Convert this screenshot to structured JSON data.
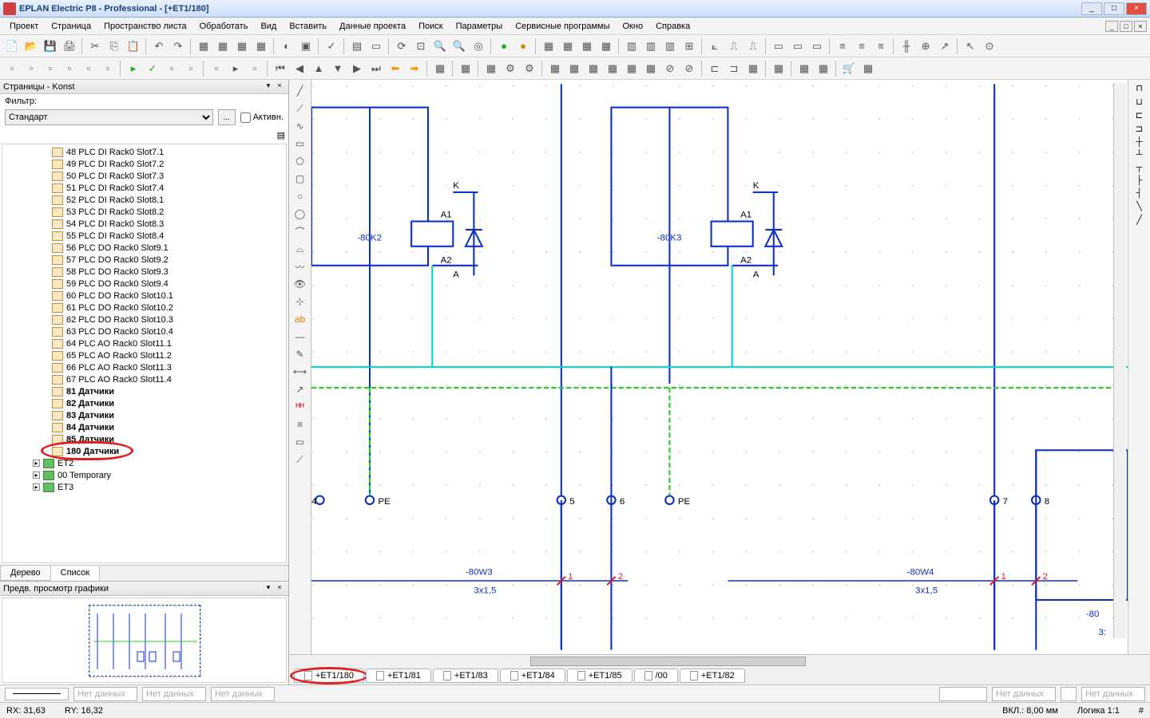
{
  "app": {
    "title": "EPLAN Electric P8 - Professional - [+ET1/180]"
  },
  "menu": [
    "Проект",
    "Страница",
    "Пространство листа",
    "Обработать",
    "Вид",
    "Вставить",
    "Данные проекта",
    "Поиск",
    "Параметры",
    "Сервисные программы",
    "Окно",
    "Справка"
  ],
  "pages_panel": {
    "title": "Страницы - Konst",
    "filter_label": "Фильтр:",
    "filter_value": "Стандарт",
    "active_label": "Активн.",
    "tabs": {
      "tree": "Дерево",
      "list": "Список"
    },
    "items": [
      {
        "label": "48 PLC DI Rack0 Slot7.1",
        "bold": false
      },
      {
        "label": "49 PLC DI Rack0 Slot7.2",
        "bold": false
      },
      {
        "label": "50 PLC DI Rack0 Slot7.3",
        "bold": false
      },
      {
        "label": "51 PLC DI Rack0 Slot7.4",
        "bold": false
      },
      {
        "label": "52 PLC DI Rack0 Slot8.1",
        "bold": false
      },
      {
        "label": "53 PLC DI Rack0 Slot8.2",
        "bold": false
      },
      {
        "label": "54 PLC DI Rack0 Slot8.3",
        "bold": false
      },
      {
        "label": "55 PLC DI Rack0 Slot8.4",
        "bold": false
      },
      {
        "label": "56 PLC DO Rack0 Slot9.1",
        "bold": false
      },
      {
        "label": "57 PLC DO Rack0 Slot9.2",
        "bold": false
      },
      {
        "label": "58 PLC DO Rack0 Slot9.3",
        "bold": false
      },
      {
        "label": "59 PLC DO Rack0 Slot9.4",
        "bold": false
      },
      {
        "label": "60 PLC DO Rack0 Slot10.1",
        "bold": false
      },
      {
        "label": "61 PLC DO Rack0 Slot10.2",
        "bold": false
      },
      {
        "label": "62 PLC DO Rack0 Slot10.3",
        "bold": false
      },
      {
        "label": "63 PLC DO Rack0 Slot10.4",
        "bold": false
      },
      {
        "label": "64 PLC AO Rack0 Slot11.1",
        "bold": false
      },
      {
        "label": "65 PLC AO Rack0 Slot11.2",
        "bold": false
      },
      {
        "label": "66 PLC AO Rack0 Slot11.3",
        "bold": false
      },
      {
        "label": "67 PLC AO Rack0 Slot11.4",
        "bold": false
      },
      {
        "label": "81 Датчики",
        "bold": true
      },
      {
        "label": "82 Датчики",
        "bold": true
      },
      {
        "label": "83 Датчики",
        "bold": true
      },
      {
        "label": "84 Датчики",
        "bold": true
      },
      {
        "label": "85 Датчики",
        "bold": true
      },
      {
        "label": "180 Датчики",
        "bold": true,
        "circled": true
      }
    ],
    "nodes": [
      {
        "label": "ET2"
      },
      {
        "label": "00 Temporary",
        "bold": true
      },
      {
        "label": "ET3"
      }
    ]
  },
  "preview_panel": {
    "title": "Предв. просмотр графики"
  },
  "canvas": {
    "background": "#ffffff",
    "grid_color": "#e8e8e8",
    "wire_blue": "#1030c4",
    "wire_cyan": "#00d8e0",
    "wire_green": "#20d020",
    "text_blue": "#1030c4",
    "text_black": "#000000",
    "red": "#e02020",
    "components": {
      "k2": {
        "ref": "-80K2",
        "pins": {
          "top": "K",
          "a1": "A1",
          "a2": "A2",
          "bot": "A"
        }
      },
      "k3": {
        "ref": "-80K3",
        "pins": {
          "top": "K",
          "a1": "A1",
          "a2": "A2",
          "bot": "A"
        }
      },
      "w3": {
        "ref": "-80W3",
        "spec": "3x1,5"
      },
      "w4": {
        "ref": "-80W4",
        "spec": "3x1,5"
      },
      "term_labels": [
        "4",
        "PE",
        "5",
        "6",
        "PE",
        "7",
        "8"
      ],
      "wire_nums": [
        "1",
        "2",
        "1",
        "2"
      ],
      "partial_right": "-80"
    }
  },
  "page_tabs": [
    {
      "label": "+ET1/180",
      "active": true,
      "circled": true
    },
    {
      "label": "+ET1/81"
    },
    {
      "label": "+ET1/83"
    },
    {
      "label": "+ET1/84"
    },
    {
      "label": "+ET1/85"
    },
    {
      "label": "/00"
    },
    {
      "label": "+ET1/82"
    }
  ],
  "bottom": {
    "nodata": "Нет данных"
  },
  "status": {
    "rx": "RX: 31,63",
    "ry": "RY: 16,32",
    "vkl": "ВКЛ.: 8,00 мм",
    "logic": "Логика 1:1",
    "hash": "#"
  },
  "colors": {
    "annotation_red": "#e02020"
  }
}
